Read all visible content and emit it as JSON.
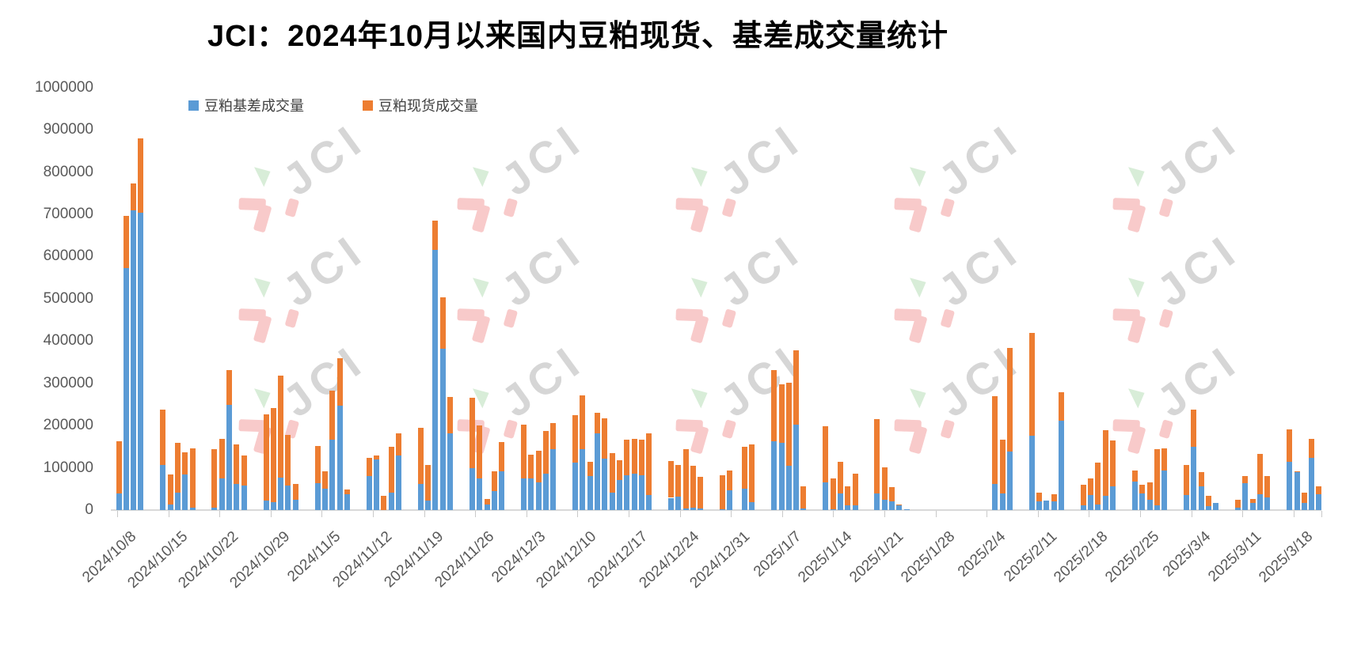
{
  "title": "JCI：2024年10月以来国内豆粕现货、基差成交量统计",
  "legend": [
    {
      "label": "豆粕基差成交量",
      "color": "#5B9BD5"
    },
    {
      "label": "豆粕现货成交量",
      "color": "#ED7D31"
    }
  ],
  "watermark": {
    "text": "JCI",
    "pink": "#f8caca",
    "green": "#d8edd8",
    "gray": "#d6d6d6"
  },
  "chart_data": {
    "type": "bar",
    "stacked": true,
    "title": "JCI：2024年10月以来国内豆粕现货、基差成交量统计",
    "xlabel": "",
    "ylabel": "",
    "ylim": [
      0,
      1000000
    ],
    "grid": false,
    "legend_position": "top-left",
    "y_ticks": [
      0,
      100000,
      200000,
      300000,
      400000,
      500000,
      600000,
      700000,
      800000,
      900000,
      1000000
    ],
    "x_labels": [
      "2024/10/8",
      "2024/10/15",
      "2024/10/22",
      "2024/10/29",
      "2024/11/5",
      "2024/11/12",
      "2024/11/19",
      "2024/11/26",
      "2024/12/3",
      "2024/12/10",
      "2024/12/17",
      "2024/12/24",
      "2024/12/31",
      "2025/1/7",
      "2025/1/14",
      "2025/1/21",
      "2025/1/28",
      "2025/2/4",
      "2025/2/11",
      "2025/2/18",
      "2025/2/25",
      "2025/3/4",
      "2025/3/11",
      "2025/3/18"
    ],
    "series_names": [
      "豆粕基差成交量",
      "豆粕现货成交量"
    ],
    "series_colors": [
      "#5B9BD5",
      "#ED7D31"
    ],
    "bars_note": "daily stacked bars [basis_volume, spot_volume]; null = no-trading day slot",
    "bars": [
      [
        40000,
        122000
      ],
      [
        572000,
        125000
      ],
      [
        710000,
        63000
      ],
      [
        703000,
        176000
      ],
      null,
      null,
      [
        106000,
        131000
      ],
      [
        14000,
        70000
      ],
      [
        42000,
        118000
      ],
      [
        84000,
        53000
      ],
      [
        6000,
        140000
      ],
      null,
      null,
      [
        5000,
        139000
      ],
      [
        75000,
        94000
      ],
      [
        248000,
        83000
      ],
      [
        61000,
        95000
      ],
      [
        58000,
        72000
      ],
      null,
      null,
      [
        22000,
        205000
      ],
      [
        19000,
        222000
      ],
      [
        77000,
        241000
      ],
      [
        58000,
        120000
      ],
      [
        24000,
        37000
      ],
      null,
      null,
      [
        64000,
        88000
      ],
      [
        50000,
        42000
      ],
      [
        167000,
        115000
      ],
      [
        247000,
        112000
      ],
      [
        37000,
        12000
      ],
      null,
      null,
      [
        81000,
        43000
      ],
      [
        119000,
        10000
      ],
      [
        0,
        33000
      ],
      [
        42000,
        107000
      ],
      [
        129000,
        52000
      ],
      null,
      null,
      [
        62000,
        133000
      ],
      [
        22000,
        84000
      ],
      [
        615000,
        70000
      ],
      [
        381000,
        123000
      ],
      [
        182000,
        86000
      ],
      null,
      null,
      [
        100000,
        165000
      ],
      [
        75000,
        125000
      ],
      [
        14000,
        12000
      ],
      [
        45000,
        47000
      ],
      [
        92000,
        69000
      ],
      null,
      null,
      [
        74000,
        129000
      ],
      [
        75000,
        56000
      ],
      [
        66000,
        75000
      ],
      [
        87000,
        100000
      ],
      [
        145000,
        61000
      ],
      null,
      null,
      [
        112000,
        113000
      ],
      [
        145000,
        127000
      ],
      [
        81000,
        33000
      ],
      [
        181000,
        50000
      ],
      [
        122000,
        95000
      ],
      [
        41000,
        94000
      ],
      [
        72000,
        46000
      ],
      [
        83000,
        84000
      ],
      [
        86000,
        82000
      ],
      [
        83000,
        83000
      ],
      [
        35000,
        147000
      ],
      null,
      null,
      [
        29000,
        87000
      ],
      [
        31000,
        75000
      ],
      [
        4000,
        140000
      ],
      [
        6000,
        99000
      ],
      [
        4000,
        75000
      ],
      null,
      null,
      [
        2000,
        81000
      ],
      [
        47000,
        46000
      ],
      null,
      [
        50000,
        99000
      ],
      [
        19000,
        136000
      ],
      null,
      null,
      [
        162000,
        170000
      ],
      [
        159000,
        138000
      ],
      [
        104000,
        197000
      ],
      [
        203000,
        176000
      ],
      [
        3000,
        53000
      ],
      null,
      null,
      [
        65000,
        134000
      ],
      [
        1000,
        73000
      ],
      [
        39000,
        75000
      ],
      [
        11000,
        46000
      ],
      [
        12000,
        75000
      ],
      null,
      null,
      [
        40000,
        175000
      ],
      [
        25000,
        76000
      ],
      [
        21000,
        34000
      ],
      [
        11000,
        2000
      ],
      [
        2000,
        0
      ],
      null,
      null,
      null,
      null,
      null,
      null,
      null,
      null,
      null,
      null,
      null,
      [
        61000,
        209000
      ],
      [
        39000,
        128000
      ],
      [
        139000,
        245000
      ],
      null,
      null,
      [
        176000,
        244000
      ],
      [
        20000,
        21000
      ],
      [
        22000,
        0
      ],
      [
        20000,
        18000
      ],
      [
        212000,
        67000
      ],
      null,
      null,
      [
        11000,
        48000
      ],
      [
        36000,
        38000
      ],
      [
        14000,
        99000
      ],
      [
        33000,
        156000
      ],
      [
        57000,
        107000
      ],
      null,
      null,
      [
        67000,
        26000
      ],
      [
        39000,
        21000
      ],
      [
        25000,
        41000
      ],
      [
        11000,
        134000
      ],
      [
        94000,
        52000
      ],
      null,
      null,
      [
        36000,
        70000
      ],
      [
        150000,
        87000
      ],
      [
        56000,
        33000
      ],
      [
        10000,
        24000
      ],
      [
        16000,
        0
      ],
      null,
      null,
      [
        5000,
        20000
      ],
      [
        64000,
        17000
      ],
      [
        16000,
        11000
      ],
      [
        38000,
        94000
      ],
      [
        30000,
        50000
      ],
      null,
      null,
      [
        115000,
        75000
      ],
      [
        89000,
        3000
      ],
      [
        17000,
        24000
      ],
      [
        123000,
        46000
      ],
      [
        37000,
        19000
      ]
    ]
  }
}
